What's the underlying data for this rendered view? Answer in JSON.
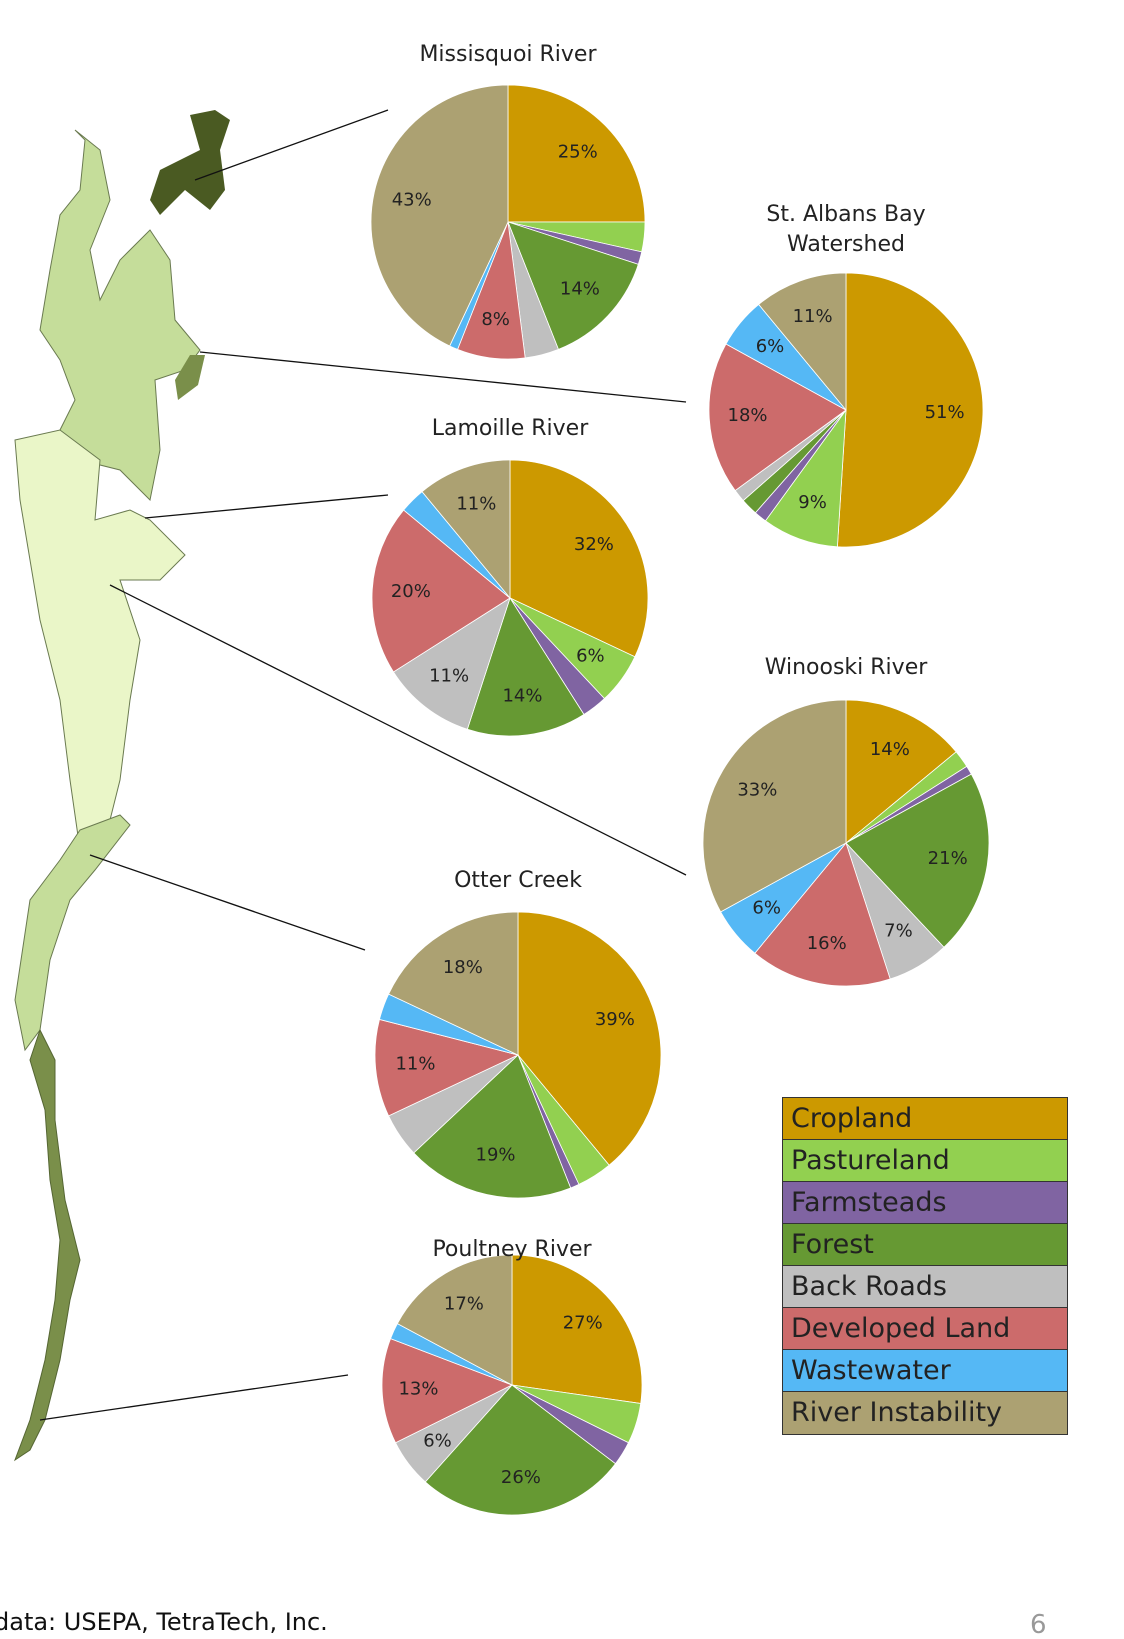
{
  "chart_data": [
    {
      "type": "pie",
      "title": "Missisquoi River",
      "values": [
        25,
        3.5,
        1.5,
        14,
        4,
        8,
        1,
        43
      ],
      "value_labels": [
        "25%",
        null,
        null,
        "14%",
        null,
        "8%",
        null,
        "43%"
      ]
    },
    {
      "type": "pie",
      "title": "St. Albans Bay Watershed",
      "values": [
        51,
        9,
        1.5,
        2,
        1.5,
        18,
        6,
        11
      ],
      "value_labels": [
        "51%",
        "9%",
        null,
        null,
        null,
        "18%",
        "6%",
        "11%"
      ]
    },
    {
      "type": "pie",
      "title": "Lamoille River",
      "values": [
        32,
        6,
        3,
        14,
        11,
        20,
        3,
        11
      ],
      "value_labels": [
        "32%",
        "6%",
        null,
        "14%",
        "11%",
        "20%",
        null,
        "11%"
      ]
    },
    {
      "type": "pie",
      "title": "Winooski River",
      "values": [
        14,
        2,
        1,
        21,
        7,
        16,
        6,
        33
      ],
      "value_labels": [
        "14%",
        null,
        null,
        "21%",
        "7%",
        "16%",
        "6%",
        "33%"
      ]
    },
    {
      "type": "pie",
      "title": "Otter Creek",
      "values": [
        39,
        4,
        1,
        19,
        5,
        11,
        3,
        18
      ],
      "value_labels": [
        "39%",
        null,
        null,
        "19%",
        null,
        "11%",
        null,
        "18%"
      ]
    },
    {
      "type": "pie",
      "title": "Poultney River",
      "values": [
        27,
        5,
        3,
        26,
        6,
        13,
        2,
        17
      ],
      "value_labels": [
        "27%",
        null,
        null,
        "26%",
        "6%",
        "13%",
        null,
        "17%"
      ]
    }
  ],
  "legend": {
    "categories": [
      "Cropland",
      "Pastureland",
      "Farmsteads",
      "Forest",
      "Back Roads",
      "Developed Land",
      "Wastewater",
      "River Instability"
    ],
    "colors": [
      "#cc9900",
      "#92d050",
      "#8064a2",
      "#669933",
      "#bfbfbf",
      "#cc6b6b",
      "#55b8f5",
      "#aca172"
    ]
  },
  "source": "data: USEPA, TetraTech, Inc.",
  "page_number": "6"
}
